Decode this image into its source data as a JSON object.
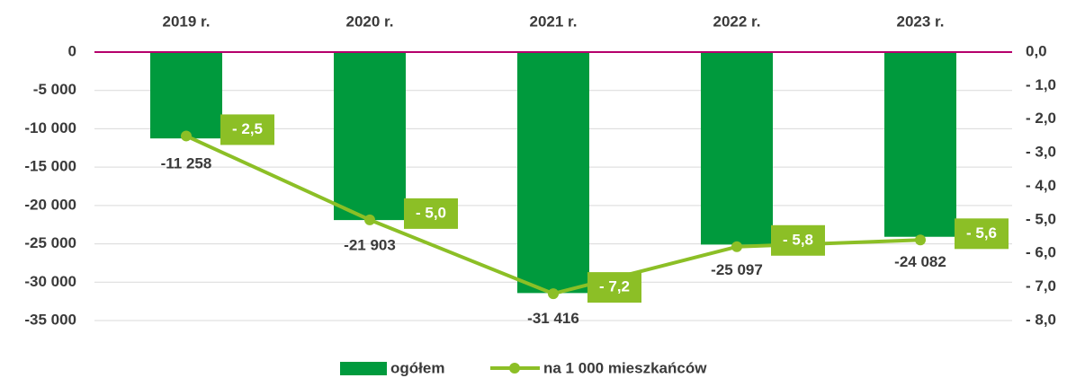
{
  "chart_data": {
    "type": "bar_line",
    "categories": [
      "2019 r.",
      "2020 r.",
      "2021 r.",
      "2022 r.",
      "2023 r."
    ],
    "series": [
      {
        "name": "ogółem",
        "color": "#009a3d",
        "values": [
          -11258,
          -21903,
          -31416,
          -25097,
          -24082
        ],
        "value_labels": [
          "-11 258",
          "-21 903",
          "-31 416",
          "-25 097",
          "-24 082"
        ]
      },
      {
        "name": "na 1 000 mieszkańców",
        "color": "#8cbf26",
        "axis": "y2",
        "values": [
          -2.5,
          -5.0,
          -7.2,
          -5.8,
          -5.6
        ],
        "value_labels": [
          "- 2,5",
          "- 5,0",
          "- 7,2",
          "- 5,8",
          "- 5,6"
        ]
      }
    ],
    "ylim": [
      -35000,
      0
    ],
    "yticks": [
      0,
      {
        "value": -5000,
        "label": "-5 000"
      },
      {
        "value": -10000,
        "label": "-10 000"
      },
      {
        "value": -15000,
        "label": "-15 000"
      },
      {
        "value": -20000,
        "label": "-20 000"
      },
      {
        "value": -25000,
        "label": "-25 000"
      },
      {
        "value": -30000,
        "label": "-30 000"
      },
      {
        "value": -35000,
        "label": "-35 000"
      }
    ],
    "y2lim": [
      -8,
      0
    ],
    "y2ticks": [
      {
        "value": 0,
        "label": "0,0"
      },
      {
        "value": -1,
        "label": "- 1,0"
      },
      {
        "value": -2,
        "label": "- 2,0"
      },
      {
        "value": -3,
        "label": "- 3,0"
      },
      {
        "value": -4,
        "label": "- 4,0"
      },
      {
        "value": -5,
        "label": "- 5,0"
      },
      {
        "value": -6,
        "label": "- 6,0"
      },
      {
        "value": -7,
        "label": "- 7,0"
      },
      {
        "value": -8,
        "label": "- 8,0"
      }
    ],
    "grid": true,
    "zero_line_color": "#b5006b",
    "legend": "bottom"
  }
}
